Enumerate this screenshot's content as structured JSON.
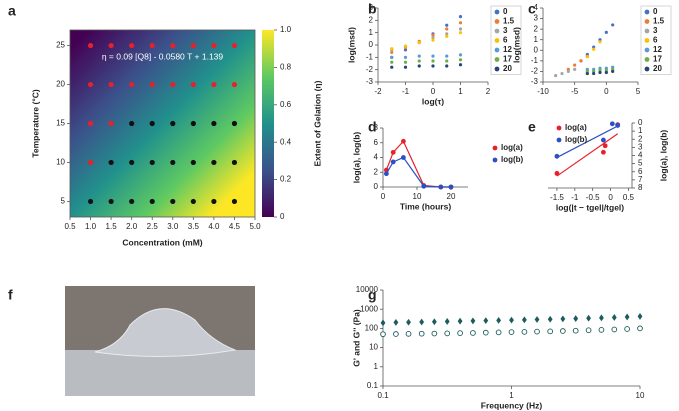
{
  "chart_data": [
    {
      "type": "heatmap",
      "panel_label": "a",
      "annotation": "η = 0.09 [Q8] - 0.0580 T + 1.139",
      "xlabel": "Concentration (mM)",
      "ylabel": "Temperature (°C)",
      "xlim": [
        0.5,
        5
      ],
      "xticks": [
        0.5,
        {
          "value": 1,
          "label": "1.0"
        },
        1.5,
        {
          "value": 2,
          "label": "2.0"
        },
        2.5,
        {
          "value": 3,
          "label": "3.0"
        },
        3.5,
        {
          "value": 4,
          "label": "4.0"
        },
        4.5,
        {
          "value": 5,
          "label": "5.0"
        }
      ],
      "ylim": [
        3,
        27
      ],
      "yticks": [
        5,
        10,
        15,
        20,
        25
      ],
      "colorbar": {
        "label": "Extent of Gelation (η)",
        "lim": [
          0,
          1
        ],
        "ticks": [
          0,
          0.2,
          0.4,
          0.6,
          0.8,
          {
            "value": 1,
            "label": "1.0"
          }
        ]
      },
      "series": [
        {
          "color": "#e8202a",
          "x": [
            1,
            1.5,
            2,
            2.5,
            3,
            3.5,
            4,
            4.5,
            1,
            1.5,
            2,
            2.5,
            3,
            3.5,
            4,
            4.5,
            1,
            1.5,
            1
          ],
          "values": [
            25,
            25,
            25,
            25,
            25,
            25,
            25,
            25,
            20,
            20,
            20,
            20,
            20,
            20,
            20,
            20,
            15,
            15,
            10
          ]
        },
        {
          "color": "#111111",
          "x": [
            2,
            2.5,
            3,
            3.5,
            4,
            4.5,
            1.5,
            2,
            2.5,
            3,
            3.5,
            4,
            4.5,
            1,
            1.5,
            2,
            2.5,
            3,
            3.5,
            4,
            4.5
          ],
          "values": [
            15,
            15,
            15,
            15,
            15,
            15,
            10,
            10,
            10,
            10,
            10,
            10,
            10,
            5,
            5,
            5,
            5,
            5,
            5,
            5,
            5
          ]
        }
      ]
    },
    {
      "type": "scatter",
      "panel_label": "b",
      "xlabel": "log(τ)",
      "ylabel": "log(msd)",
      "legend": "right",
      "xlim": [
        -2,
        2
      ],
      "xticks": [
        -2,
        -1,
        0,
        1,
        2
      ],
      "ylim": [
        -3,
        3
      ],
      "yticks": [
        -3,
        -2,
        -1,
        0,
        1,
        2,
        3
      ],
      "x": [
        -1.5,
        -1,
        -0.5,
        0,
        0.5,
        1
      ],
      "series": [
        {
          "name": "0",
          "color": "#4472c4",
          "values": [
            -1.0,
            -0.4,
            0.2,
            0.9,
            1.6,
            2.3
          ]
        },
        {
          "name": "1.5",
          "color": "#ed7d31",
          "values": [
            -0.6,
            -0.2,
            0.3,
            0.8,
            1.3,
            1.8
          ]
        },
        {
          "name": "3",
          "color": "#a5a5a5",
          "values": [
            -0.4,
            -0.1,
            0.2,
            0.6,
            0.9,
            1.3
          ]
        },
        {
          "name": "6",
          "color": "#ffc000",
          "values": [
            -0.3,
            -0.1,
            0.2,
            0.4,
            0.7,
            1.0
          ]
        },
        {
          "name": "12",
          "color": "#5b9bd5",
          "values": [
            -1.0,
            -1.0,
            -0.9,
            -0.9,
            -0.9,
            -0.8
          ]
        },
        {
          "name": "17",
          "color": "#70ad47",
          "values": [
            -1.4,
            -1.4,
            -1.3,
            -1.3,
            -1.3,
            -1.2
          ]
        },
        {
          "name": "20",
          "color": "#264478",
          "values": [
            -1.8,
            -1.8,
            -1.7,
            -1.7,
            -1.7,
            -1.6
          ]
        }
      ]
    },
    {
      "type": "scatter",
      "panel_label": "c",
      "ylabel": "log(msd)",
      "legend": "right",
      "xlim": [
        -10,
        5
      ],
      "xticks": [
        -10,
        -5,
        0,
        5
      ],
      "ylim": [
        -3,
        4
      ],
      "yticks": [
        -3,
        -2,
        -1,
        0,
        1,
        2,
        3,
        4
      ],
      "series": [
        {
          "name": "0",
          "color": "#4472c4",
          "x": [
            -4,
            -3,
            -2,
            -1,
            0,
            1
          ],
          "values": [
            -1.0,
            -0.4,
            0.3,
            1.0,
            1.7,
            2.4
          ]
        },
        {
          "name": "1.5",
          "color": "#ed7d31",
          "x": [
            -6,
            -5,
            -4,
            -3
          ],
          "values": [
            -1.8,
            -1.4,
            -1.0,
            -0.6
          ]
        },
        {
          "name": "3",
          "color": "#a5a5a5",
          "x": [
            -8,
            -7,
            -6,
            -5
          ],
          "values": [
            -2.4,
            -2.2,
            -2.0,
            -1.8
          ]
        },
        {
          "name": "6",
          "color": "#ffc000",
          "x": [
            -3,
            -2,
            -1
          ],
          "values": [
            -0.6,
            0.1,
            0.8
          ]
        },
        {
          "name": "12",
          "color": "#5b9bd5",
          "x": [
            -3,
            -2,
            -1,
            0,
            1
          ],
          "values": [
            -1.8,
            -1.8,
            -1.7,
            -1.7,
            -1.6
          ]
        },
        {
          "name": "17",
          "color": "#70ad47",
          "x": [
            -3,
            -2,
            -1,
            0,
            1
          ],
          "values": [
            -2.0,
            -2.0,
            -1.9,
            -1.9,
            -1.8
          ]
        },
        {
          "name": "20",
          "color": "#264478",
          "x": [
            -3,
            -2,
            -1,
            0,
            1
          ],
          "values": [
            -2.2,
            -2.2,
            -2.1,
            -2.1,
            -2.0
          ]
        }
      ]
    },
    {
      "type": "line",
      "panel_label": "d",
      "xlabel": "Time (hours)",
      "ylabel": "log(a), log(b)",
      "legend": "right",
      "xlim": [
        0,
        25
      ],
      "xticks": [
        0,
        10,
        20
      ],
      "ylim": [
        0,
        8
      ],
      "yticks": [
        0,
        2,
        4,
        6,
        8
      ],
      "x": [
        1,
        3,
        6,
        12,
        17,
        20
      ],
      "series": [
        {
          "name": "log(a)",
          "color": "#e8202a",
          "values": [
            2.3,
            4.7,
            6.2,
            0.2,
            0,
            0
          ]
        },
        {
          "name": "log(b)",
          "color": "#2b4fc4",
          "values": [
            1.8,
            3.4,
            4.0,
            0.1,
            0,
            0
          ]
        }
      ]
    },
    {
      "type": "scatter",
      "panel_label": "e",
      "xlabel": "log(|t − tgel|/tgel)",
      "ylabel": "log(a), log(b)",
      "legend": "top-left",
      "fit": true,
      "y_inverted": true,
      "yaxis_side": "right",
      "xlim": [
        -1.75,
        0.6
      ],
      "xticks": [
        -1.5,
        -1,
        -0.5,
        0,
        0.5
      ],
      "ylim": [
        0,
        8
      ],
      "yticks": [
        0,
        1,
        2,
        3,
        4,
        5,
        6,
        7,
        8
      ],
      "series": [
        {
          "name": "log(a)",
          "color": "#e8202a",
          "x": [
            -1.5,
            -0.2,
            -0.15,
            0.2
          ],
          "values": [
            6.2,
            3.6,
            2.8,
            0.2
          ]
        },
        {
          "name": "log(b)",
          "color": "#2b4fc4",
          "x": [
            -1.5,
            -0.2,
            0.05,
            0.2
          ],
          "values": [
            4.1,
            2.1,
            0.1,
            0.3
          ]
        }
      ]
    },
    {
      "type": "scatter",
      "panel_label": "g",
      "xlabel": "Frequency (Hz)",
      "ylabel": "G' and G'' (Pa)",
      "xscale": "log",
      "yscale": "log",
      "xlim": [
        0.1,
        10
      ],
      "xticks": [
        0.1,
        1,
        10
      ],
      "ylim": [
        0.1,
        10000
      ],
      "yticks": [
        0.1,
        1,
        10,
        100,
        1000,
        10000
      ],
      "x": [
        0.1,
        0.126,
        0.158,
        0.2,
        0.251,
        0.316,
        0.398,
        0.501,
        0.631,
        0.794,
        1,
        1.26,
        1.58,
        2,
        2.51,
        3.16,
        3.98,
        5.01,
        6.31,
        7.94,
        10
      ],
      "series": [
        {
          "color": "#1d5c5c",
          "marker": "diamond",
          "values": [
            195,
            205,
            210,
            215,
            222,
            230,
            238,
            245,
            253,
            262,
            270,
            280,
            290,
            300,
            312,
            325,
            340,
            355,
            372,
            395,
            420
          ]
        },
        {
          "color": "#1d5c5c",
          "marker": "circle-open",
          "values": [
            50,
            51,
            52,
            53,
            54,
            55,
            57,
            58,
            60,
            62,
            64,
            66,
            68,
            70,
            73,
            76,
            80,
            84,
            88,
            93,
            100
          ]
        }
      ]
    }
  ],
  "photo_panel": {
    "label": "f"
  }
}
